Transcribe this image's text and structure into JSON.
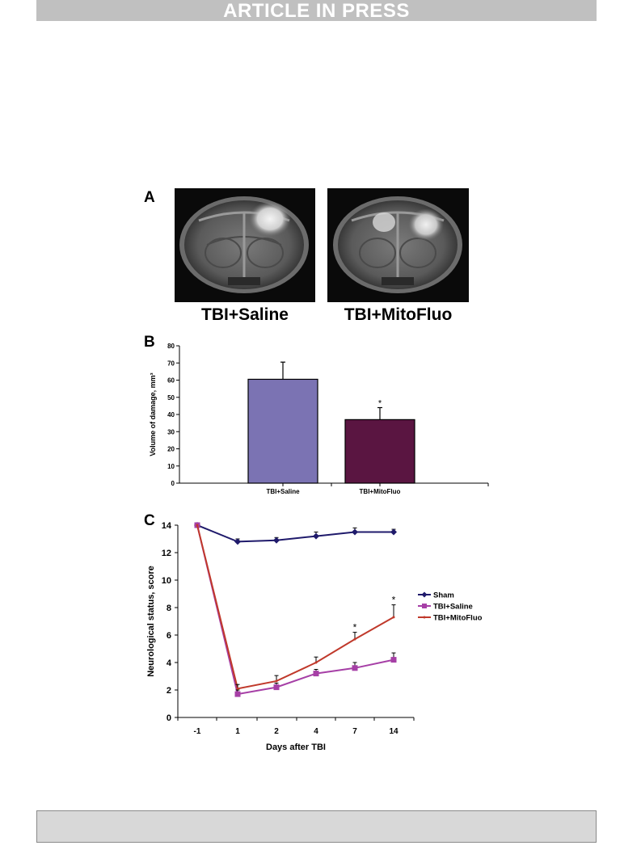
{
  "banner": {
    "text": "ARTICLE IN PRESS"
  },
  "figure": {
    "panel_a": {
      "letter": "A",
      "captions": [
        "TBI+Saline",
        "TBI+MitoFluo"
      ]
    },
    "panel_b": {
      "letter": "B"
    },
    "panel_c": {
      "letter": "C"
    }
  },
  "chart_data": [
    {
      "type": "bar",
      "categories": [
        "TBI+Saline",
        "TBI+MitoFluo"
      ],
      "values": [
        60.5,
        37
      ],
      "errors": [
        10,
        7
      ],
      "significance": [
        "",
        "*"
      ],
      "colors": [
        "#7b73b3",
        "#5a1541"
      ],
      "ylabel": "Volume of damage, mm³",
      "ylim": [
        0,
        80
      ],
      "yticks": [
        0,
        10,
        20,
        30,
        40,
        50,
        60,
        70,
        80
      ],
      "xlabel": ""
    },
    {
      "type": "line",
      "x": [
        "-1",
        "1",
        "2",
        "4",
        "7",
        "14"
      ],
      "series": [
        {
          "name": "Sham",
          "color": "#1f1a6b",
          "marker": "diamond",
          "values": [
            14,
            12.8,
            12.9,
            13.2,
            13.5,
            13.5
          ],
          "errors": [
            0,
            0.2,
            0.2,
            0.3,
            0.3,
            0.2
          ]
        },
        {
          "name": "TBI+Saline",
          "color": "#a63fa6",
          "marker": "square",
          "values": [
            14,
            1.7,
            2.2,
            3.2,
            3.6,
            4.2
          ],
          "errors": [
            0,
            0.3,
            0.3,
            0.3,
            0.4,
            0.5
          ]
        },
        {
          "name": "TBI+MitoFluo",
          "color": "#c0392b",
          "marker": "none",
          "values": [
            14,
            2.1,
            2.65,
            4.0,
            5.7,
            7.3
          ],
          "errors": [
            0,
            0.3,
            0.4,
            0.4,
            0.5,
            0.9
          ]
        }
      ],
      "significance_marks": [
        {
          "x": "7",
          "label": "*"
        },
        {
          "x": "14",
          "label": "*"
        }
      ],
      "ylim": [
        0,
        14
      ],
      "yticks": [
        0,
        2,
        4,
        6,
        8,
        10,
        12,
        14
      ],
      "xlabel": "Days after TBI",
      "ylabel": "Neurological status, score",
      "legend": "right"
    }
  ]
}
